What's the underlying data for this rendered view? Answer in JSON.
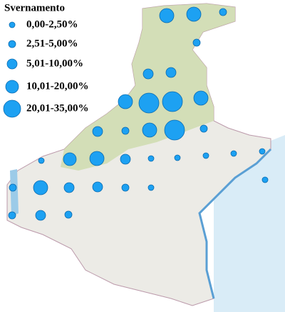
{
  "legend": {
    "title": "Svernamento",
    "entries": [
      "0,00-2,50%",
      "2,51-5,00%",
      "5,01-10,00%",
      "10,01-20,00%",
      "20,01-35,00%"
    ]
  }
}
